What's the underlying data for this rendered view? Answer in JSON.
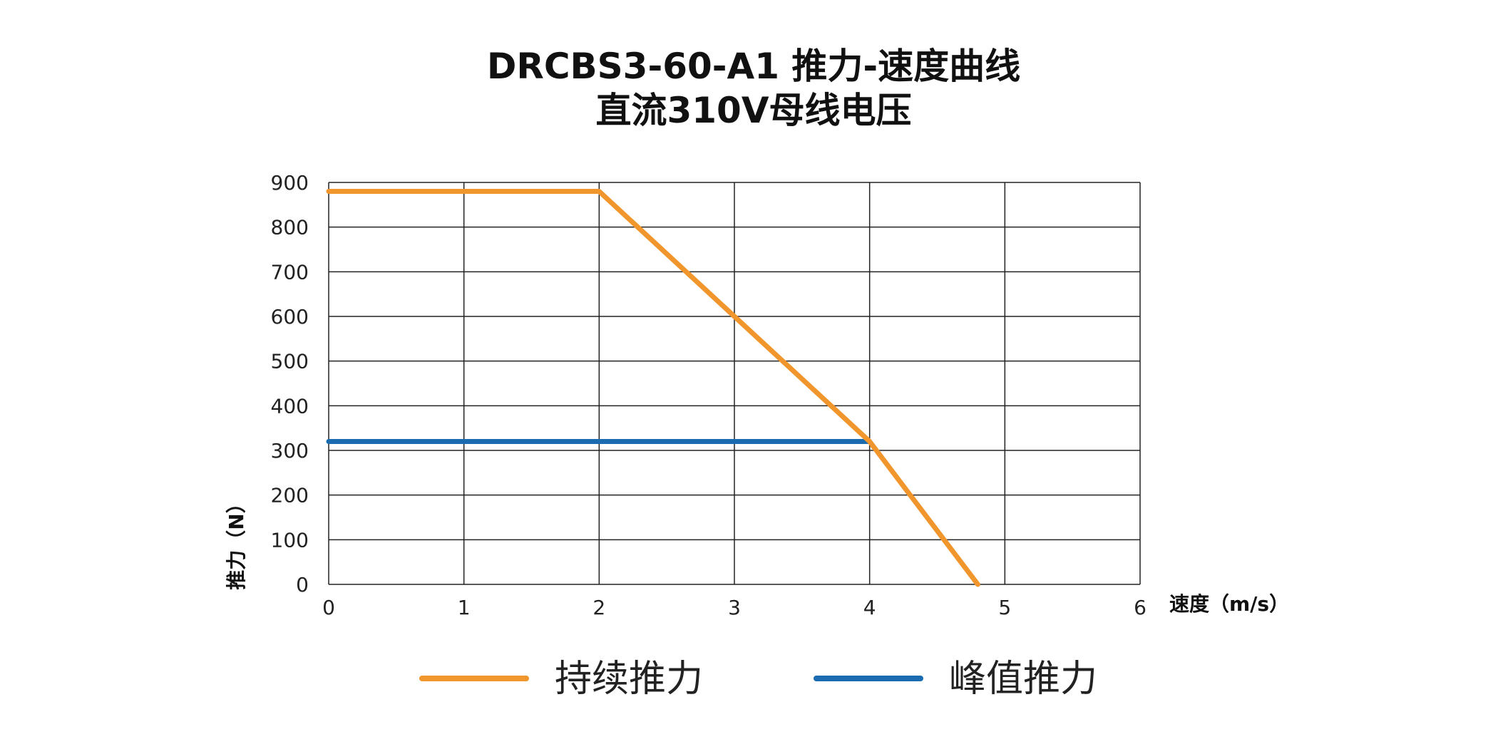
{
  "chart_data": {
    "type": "line",
    "title": "DRCBS3-60-A1 推力-速度曲线",
    "subtitle": "直流310V母线电压",
    "xlabel": "速度（m/s）",
    "ylabel": "推力（N）",
    "xlim": [
      0,
      6
    ],
    "ylim": [
      0,
      900
    ],
    "x_ticks": [
      "0",
      "1",
      "2",
      "3",
      "4",
      "5",
      "6"
    ],
    "y_ticks": [
      "0",
      "100",
      "200",
      "300",
      "400",
      "500",
      "600",
      "700",
      "800",
      "900"
    ],
    "grid": true,
    "legend_position": "bottom",
    "series": [
      {
        "name": "持续推力",
        "color": "#F0962D",
        "points": [
          [
            0,
            880
          ],
          [
            2,
            880
          ],
          [
            4,
            320
          ],
          [
            4.8,
            0
          ]
        ]
      },
      {
        "name": "峰值推力",
        "color": "#1A6BAF",
        "points": [
          [
            0,
            320
          ],
          [
            4,
            320
          ]
        ]
      }
    ]
  }
}
